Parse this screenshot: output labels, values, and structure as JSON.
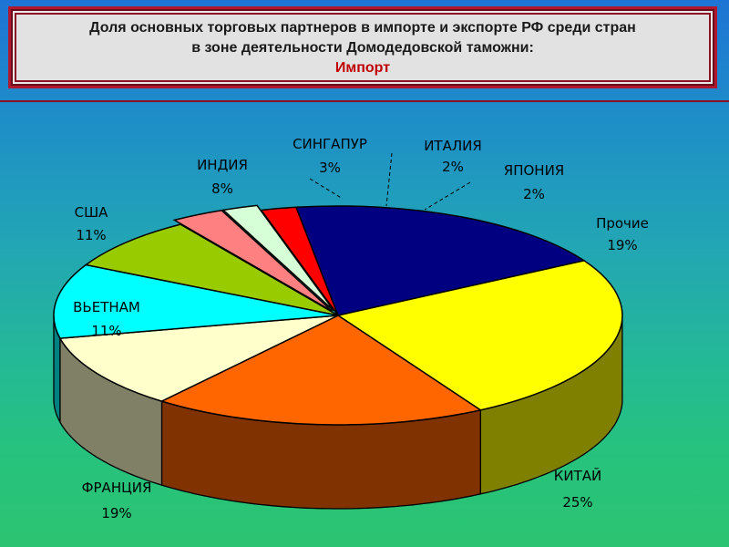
{
  "title": {
    "line1": "Доля основных торговых партнеров в импорте и экспорте РФ среди стран",
    "line2": "в зоне деятельности Домодедовской таможни:",
    "subtitle": "Импорт"
  },
  "chart_data": {
    "type": "pie",
    "style": "3d-exploded",
    "slices": [
      {
        "name": "ИТАЛИЯ",
        "label": "2%",
        "value": 2,
        "color": "#d7ffd7",
        "exploded": true
      },
      {
        "name": "ЯПОНИЯ",
        "label": "2%",
        "value": 2,
        "color": "#ff0000",
        "exploded": false
      },
      {
        "name": "Прочие",
        "label": "19%",
        "value": 19,
        "color": "#000080",
        "exploded": false
      },
      {
        "name": "КИТАЙ",
        "label": "25%",
        "value": 25,
        "color": "#ffff00",
        "exploded": false
      },
      {
        "name": "ФРАНЦИЯ",
        "label": "19%",
        "value": 19,
        "color": "#ff6600",
        "exploded": false
      },
      {
        "name": "ВЬЕТНАМ",
        "label": "11%",
        "value": 11,
        "color": "#ffffcc",
        "exploded": false
      },
      {
        "name": "США",
        "label": "11%",
        "value": 11,
        "color": "#00ffff",
        "exploded": false
      },
      {
        "name": "ИНДИЯ",
        "label": "8%",
        "value": 8,
        "color": "#99cc00",
        "exploded": false
      },
      {
        "name": "СИНГАПУР",
        "label": "3%",
        "value": 3,
        "color": "#ff8080",
        "exploded": true
      }
    ]
  }
}
